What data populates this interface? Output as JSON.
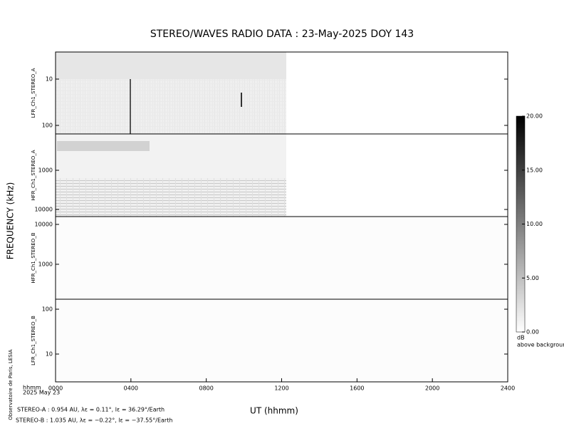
{
  "chart_data": {
    "type": "spectrogram",
    "title": "STEREO/WAVES  RADIO  DATA : 23-May-2025  DOY 143",
    "y_label": "FREQUENCY (kHz)",
    "x_label": "UT (hhmm)",
    "x_unit_note": "hhmm",
    "date_note": "2025 May 23",
    "credit": "Observatoire de Paris, LESIA",
    "footer": [
      "STEREO-A : 0.954 AU, λε = 0.11°, lε = 36.29°/Earth",
      "STEREO-B : 1.035 AU, λε = −0.22°, lε = −37.55°/Earth"
    ],
    "xlim": [
      0,
      24
    ],
    "xticks": [
      {
        "value": 0,
        "label": "0000"
      },
      {
        "value": 4,
        "label": "0400"
      },
      {
        "value": 8,
        "label": "0800"
      },
      {
        "value": 12,
        "label": "1200"
      },
      {
        "value": 16,
        "label": "1600"
      },
      {
        "value": 20,
        "label": "2000"
      },
      {
        "value": 24,
        "label": "2400"
      }
    ],
    "log": true,
    "panels": [
      {
        "label": "LFR_Ch1_STEREO_A",
        "ylim": [
          153,
          2.6
        ],
        "yticks": [
          10,
          100
        ]
      },
      {
        "label": "HFR_Ch1_STEREO_A",
        "ylim": [
          15200,
          118
        ],
        "yticks": [
          1000,
          10000
        ]
      },
      {
        "label": "HFR_Ch1_STEREO_B",
        "ylim": [
          133,
          15700
        ],
        "yticks": [
          1000,
          10000
        ]
      },
      {
        "label": "LFR_Ch1_STEREO_B",
        "ylim": [
          2.4,
          167
        ],
        "yticks": [
          10,
          100
        ]
      }
    ],
    "colorbar": {
      "label": [
        "dB",
        "above background"
      ],
      "ylim": [
        0,
        20
      ],
      "yticks": [
        {
          "value": 0,
          "label": "0.00"
        },
        {
          "value": 5,
          "label": "5.00"
        },
        {
          "value": 10,
          "label": "10.00"
        },
        {
          "value": 15,
          "label": "15.00"
        },
        {
          "value": 20,
          "label": "20.00"
        }
      ]
    }
  }
}
